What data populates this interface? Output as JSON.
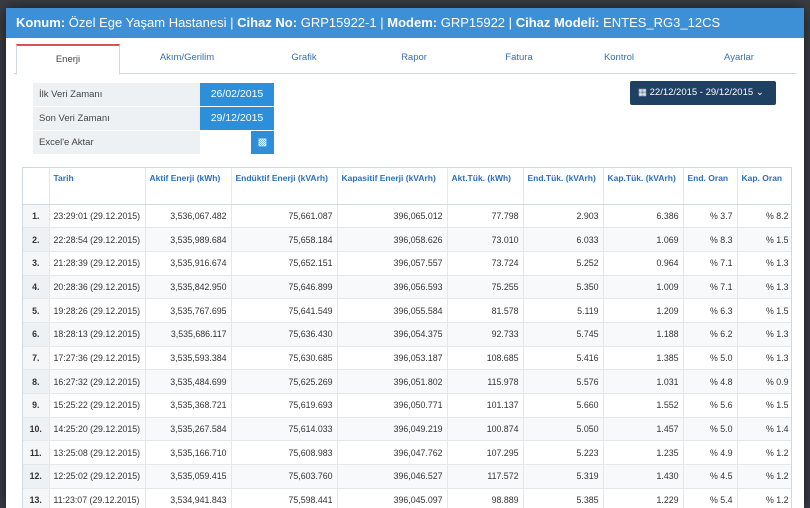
{
  "header": {
    "location_key": "Konum:",
    "location_val": "Özel Ege Yaşam Hastanesi",
    "device_key": "Cihaz No:",
    "device_val": "GRP15922-1",
    "modem_key": "Modem:",
    "modem_val": "GRP15922",
    "model_key": "Cihaz Modeli:",
    "model_val": "ENTES_RG3_12CS",
    "sep": "|"
  },
  "tabs": [
    "Enerji",
    "Akım/Gerilim",
    "Grafik",
    "Rapor",
    "Fatura",
    "Kontrol",
    "Ayarlar"
  ],
  "info": {
    "first_label": "İlk Veri Zamanı",
    "first_value": "26/02/2015",
    "last_label": "Son Veri Zamanı",
    "last_value": "29/12/2015",
    "excel_label": "Excel'e Aktar"
  },
  "date_range": "22/12/2015 - 29/12/2015",
  "table": {
    "headers": [
      "",
      "Tarih",
      "Aktif Enerji (kWh)",
      "Endüktif Enerji (kVArh)",
      "Kapasitif Enerji (kVArh)",
      "Akt.Tük. (kWh)",
      "End.Tük. (kVArh)",
      "Kap.Tük. (kVArh)",
      "End. Oran",
      "Kap. Oran"
    ],
    "rows": [
      [
        "1.",
        "23:29:01 (29.12.2015)",
        "3,536,067.482",
        "75,661.087",
        "396,065.012",
        "77.798",
        "2.903",
        "6.386",
        "% 3.7",
        "% 8.2"
      ],
      [
        "2.",
        "22:28:54 (29.12.2015)",
        "3,535,989.684",
        "75,658.184",
        "396,058.626",
        "73.010",
        "6.033",
        "1.069",
        "% 8.3",
        "% 1.5"
      ],
      [
        "3.",
        "21:28:39 (29.12.2015)",
        "3,535,916.674",
        "75,652.151",
        "396,057.557",
        "73.724",
        "5.252",
        "0.964",
        "% 7.1",
        "% 1.3"
      ],
      [
        "4.",
        "20:28:36 (29.12.2015)",
        "3,535,842.950",
        "75,646.899",
        "396,056.593",
        "75.255",
        "5.350",
        "1.009",
        "% 7.1",
        "% 1.3"
      ],
      [
        "5.",
        "19:28:26 (29.12.2015)",
        "3,535,767.695",
        "75,641.549",
        "396,055.584",
        "81.578",
        "5.119",
        "1.209",
        "% 6.3",
        "% 1.5"
      ],
      [
        "6.",
        "18:28:13 (29.12.2015)",
        "3,535,686.117",
        "75,636.430",
        "396,054.375",
        "92.733",
        "5.745",
        "1.188",
        "% 6.2",
        "% 1.3"
      ],
      [
        "7.",
        "17:27:36 (29.12.2015)",
        "3,535,593.384",
        "75,630.685",
        "396,053.187",
        "108.685",
        "5.416",
        "1.385",
        "% 5.0",
        "% 1.3"
      ],
      [
        "8.",
        "16:27:32 (29.12.2015)",
        "3,535,484.699",
        "75,625.269",
        "396,051.802",
        "115.978",
        "5.576",
        "1.031",
        "% 4.8",
        "% 0.9"
      ],
      [
        "9.",
        "15:25:22 (29.12.2015)",
        "3,535,368.721",
        "75,619.693",
        "396,050.771",
        "101.137",
        "5.660",
        "1.552",
        "% 5.6",
        "% 1.5"
      ],
      [
        "10.",
        "14:25:20 (29.12.2015)",
        "3,535,267.584",
        "75,614.033",
        "396,049.219",
        "100.874",
        "5.050",
        "1.457",
        "% 5.0",
        "% 1.4"
      ],
      [
        "11.",
        "13:25:08 (29.12.2015)",
        "3,535,166.710",
        "75,608.983",
        "396,047.762",
        "107.295",
        "5.223",
        "1.235",
        "% 4.9",
        "% 1.2"
      ],
      [
        "12.",
        "12:25:02 (29.12.2015)",
        "3,535,059.415",
        "75,603.760",
        "396,046.527",
        "117.572",
        "5.319",
        "1.430",
        "% 4.5",
        "% 1.2"
      ],
      [
        "13.",
        "11:23:07 (29.12.2015)",
        "3,534,941.843",
        "75,598.441",
        "396,045.097",
        "98.889",
        "5.385",
        "1.229",
        "% 5.4",
        "% 1.2"
      ]
    ]
  }
}
